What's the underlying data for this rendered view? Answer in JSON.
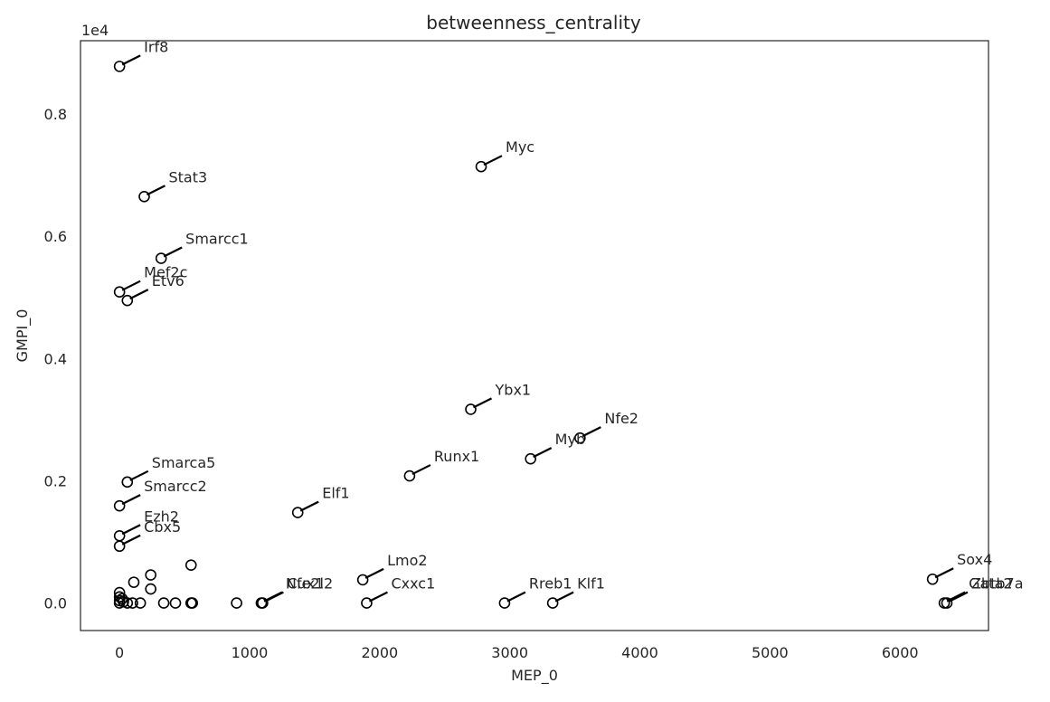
{
  "chart_data": {
    "type": "scatter",
    "title": "betweenness_centrality",
    "xlabel": "MEP_0",
    "ylabel": "GMPI_0",
    "y_offset_label": "1e4",
    "xlim": [
      -300,
      6680
    ],
    "ylim": [
      -450,
      9200
    ],
    "xticks": [
      0,
      1000,
      2000,
      3000,
      4000,
      5000,
      6000
    ],
    "yticks": [
      0,
      2000,
      4000,
      6000,
      8000
    ],
    "ytick_labels": [
      "0.0",
      "0.2",
      "0.4",
      "0.6",
      "0.8"
    ],
    "grid": false,
    "legend": "none",
    "marker": "open-circle",
    "points": [
      {
        "label": "Irf8",
        "x": 0,
        "y": 8780
      },
      {
        "label": "Myc",
        "x": 2780,
        "y": 7140
      },
      {
        "label": "Stat3",
        "x": 190,
        "y": 6650
      },
      {
        "label": "Smarcc1",
        "x": 320,
        "y": 5640
      },
      {
        "label": "Mef2c",
        "x": 0,
        "y": 5090
      },
      {
        "label": "Etv6",
        "x": 60,
        "y": 4950
      },
      {
        "label": "Ybx1",
        "x": 2700,
        "y": 3170
      },
      {
        "label": "Nfe2",
        "x": 3540,
        "y": 2700
      },
      {
        "label": "Myb",
        "x": 3160,
        "y": 2360
      },
      {
        "label": "Runx1",
        "x": 2230,
        "y": 2080
      },
      {
        "label": "Smarca5",
        "x": 60,
        "y": 1980
      },
      {
        "label": "Smarcc2",
        "x": 0,
        "y": 1590
      },
      {
        "label": "Elf1",
        "x": 1370,
        "y": 1480
      },
      {
        "label": "Ezh2",
        "x": 0,
        "y": 1100
      },
      {
        "label": "Cbx5",
        "x": 0,
        "y": 930
      },
      {
        "label": "Lmo2",
        "x": 1870,
        "y": 380
      },
      {
        "label": "Sox4",
        "x": 6250,
        "y": 390
      },
      {
        "label": "Nfe2l2",
        "x": 1090,
        "y": 0
      },
      {
        "label": "Cux1",
        "x": 1100,
        "y": 0
      },
      {
        "label": "Cxxc1",
        "x": 1900,
        "y": 0
      },
      {
        "label": "Rreb1",
        "x": 2960,
        "y": 0
      },
      {
        "label": "Klf1",
        "x": 3330,
        "y": 0
      },
      {
        "label": "Gata2",
        "x": 6340,
        "y": 0
      },
      {
        "label": "Zbtb7a",
        "x": 6360,
        "y": 0
      },
      {
        "label": "",
        "x": 550,
        "y": 620
      },
      {
        "label": "",
        "x": 240,
        "y": 460
      },
      {
        "label": "",
        "x": 110,
        "y": 340
      },
      {
        "label": "",
        "x": 240,
        "y": 230
      },
      {
        "label": "",
        "x": 0,
        "y": 170
      },
      {
        "label": "",
        "x": 0,
        "y": 100
      },
      {
        "label": "",
        "x": 20,
        "y": 70
      },
      {
        "label": "",
        "x": 0,
        "y": 40
      },
      {
        "label": "",
        "x": 30,
        "y": 20
      },
      {
        "label": "",
        "x": 60,
        "y": 0
      },
      {
        "label": "",
        "x": 100,
        "y": 0
      },
      {
        "label": "",
        "x": 160,
        "y": 0
      },
      {
        "label": "",
        "x": 340,
        "y": 0
      },
      {
        "label": "",
        "x": 430,
        "y": 0
      },
      {
        "label": "",
        "x": 550,
        "y": 0
      },
      {
        "label": "",
        "x": 560,
        "y": 0
      },
      {
        "label": "",
        "x": 900,
        "y": 0
      },
      {
        "label": "",
        "x": 0,
        "y": 0
      }
    ]
  },
  "colors": {
    "marker": "#000000",
    "axis": "#262626",
    "text": "#262626",
    "background": "#ffffff"
  }
}
